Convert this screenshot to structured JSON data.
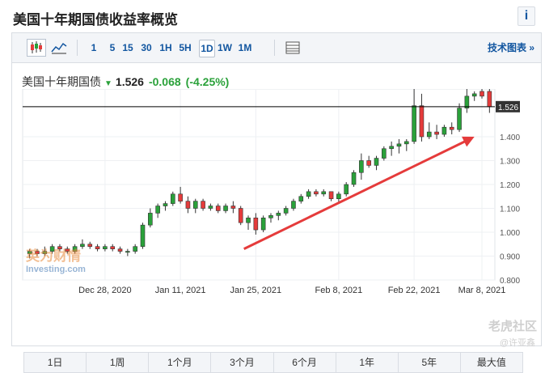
{
  "header": {
    "title": "美国十年期国债收益率概览",
    "info_icon": "i"
  },
  "toolbar": {
    "buttons": [
      "1",
      "5",
      "15",
      "30",
      "1H",
      "5H",
      "1D",
      "1W",
      "1M"
    ],
    "active": "1D",
    "right_link": "技术图表 »"
  },
  "quote": {
    "name": "美国十年期国债",
    "price": "1.526",
    "change": "-0.068",
    "change_pct": "(-4.25%)",
    "color_down": "#2aa13a"
  },
  "periods": [
    "1日",
    "1周",
    "1个月",
    "3个月",
    "6个月",
    "1年",
    "5年",
    "最大值"
  ],
  "watermark": {
    "logo": "英为财情",
    "logo_sub": "Investing.com",
    "corner": "老虎社区",
    "corner_sub": "@许亚鑫"
  },
  "chart_data": {
    "type": "candlestick",
    "last_price_label": "1.526",
    "ylim": [
      0.8,
      1.6
    ],
    "y_ticks": [
      "0.800",
      "0.900",
      "1.000",
      "1.100",
      "1.200",
      "1.300",
      "1.400"
    ],
    "x_ticks": [
      "Dec 28, 2020",
      "Jan 11, 2021",
      "Jan 25, 2021",
      "Feb 8, 2021",
      "Feb 22, 2021",
      "Mar 8, 2021"
    ],
    "x_tick_index": [
      10,
      20,
      30,
      41,
      51,
      60
    ],
    "colors": {
      "up": "#2aa13a",
      "down": "#e53b3b",
      "line": "#000000"
    },
    "candles": [
      [
        0.91,
        0.93,
        0.89,
        0.92
      ],
      [
        0.92,
        0.93,
        0.9,
        0.91
      ],
      [
        0.91,
        0.94,
        0.9,
        0.92
      ],
      [
        0.92,
        0.95,
        0.91,
        0.94
      ],
      [
        0.94,
        0.95,
        0.92,
        0.93
      ],
      [
        0.93,
        0.94,
        0.91,
        0.92
      ],
      [
        0.92,
        0.95,
        0.91,
        0.94
      ],
      [
        0.94,
        0.97,
        0.93,
        0.95
      ],
      [
        0.95,
        0.96,
        0.93,
        0.94
      ],
      [
        0.94,
        0.95,
        0.92,
        0.93
      ],
      [
        0.93,
        0.95,
        0.92,
        0.94
      ],
      [
        0.94,
        0.95,
        0.92,
        0.93
      ],
      [
        0.93,
        0.94,
        0.91,
        0.92
      ],
      [
        0.92,
        0.93,
        0.9,
        0.92
      ],
      [
        0.92,
        0.95,
        0.91,
        0.94
      ],
      [
        0.94,
        1.04,
        0.93,
        1.03
      ],
      [
        1.03,
        1.1,
        1.02,
        1.08
      ],
      [
        1.08,
        1.12,
        1.06,
        1.11
      ],
      [
        1.11,
        1.13,
        1.09,
        1.12
      ],
      [
        1.12,
        1.17,
        1.11,
        1.16
      ],
      [
        1.16,
        1.19,
        1.12,
        1.13
      ],
      [
        1.13,
        1.15,
        1.08,
        1.1
      ],
      [
        1.1,
        1.14,
        1.08,
        1.13
      ],
      [
        1.13,
        1.14,
        1.09,
        1.1
      ],
      [
        1.1,
        1.12,
        1.09,
        1.11
      ],
      [
        1.11,
        1.12,
        1.08,
        1.09
      ],
      [
        1.09,
        1.12,
        1.08,
        1.11
      ],
      [
        1.11,
        1.13,
        1.08,
        1.1
      ],
      [
        1.1,
        1.11,
        1.03,
        1.04
      ],
      [
        1.04,
        1.07,
        1.01,
        1.06
      ],
      [
        1.06,
        1.08,
        0.99,
        1.01
      ],
      [
        1.01,
        1.07,
        1.0,
        1.06
      ],
      [
        1.06,
        1.08,
        1.04,
        1.07
      ],
      [
        1.07,
        1.09,
        1.05,
        1.08
      ],
      [
        1.08,
        1.11,
        1.07,
        1.1
      ],
      [
        1.1,
        1.14,
        1.09,
        1.13
      ],
      [
        1.13,
        1.16,
        1.12,
        1.15
      ],
      [
        1.15,
        1.18,
        1.14,
        1.17
      ],
      [
        1.17,
        1.18,
        1.15,
        1.16
      ],
      [
        1.16,
        1.18,
        1.15,
        1.17
      ],
      [
        1.17,
        1.17,
        1.13,
        1.14
      ],
      [
        1.14,
        1.17,
        1.12,
        1.16
      ],
      [
        1.16,
        1.21,
        1.15,
        1.2
      ],
      [
        1.2,
        1.26,
        1.19,
        1.25
      ],
      [
        1.25,
        1.33,
        1.22,
        1.3
      ],
      [
        1.3,
        1.32,
        1.27,
        1.28
      ],
      [
        1.28,
        1.32,
        1.26,
        1.31
      ],
      [
        1.31,
        1.36,
        1.3,
        1.35
      ],
      [
        1.35,
        1.38,
        1.32,
        1.36
      ],
      [
        1.36,
        1.39,
        1.33,
        1.37
      ],
      [
        1.37,
        1.39,
        1.34,
        1.38
      ],
      [
        1.38,
        1.61,
        1.37,
        1.53
      ],
      [
        1.53,
        1.58,
        1.38,
        1.4
      ],
      [
        1.4,
        1.46,
        1.39,
        1.42
      ],
      [
        1.42,
        1.45,
        1.39,
        1.41
      ],
      [
        1.41,
        1.45,
        1.4,
        1.44
      ],
      [
        1.44,
        1.46,
        1.41,
        1.43
      ],
      [
        1.43,
        1.54,
        1.42,
        1.52
      ],
      [
        1.52,
        1.6,
        1.5,
        1.57
      ],
      [
        1.57,
        1.59,
        1.55,
        1.58
      ],
      [
        1.59,
        1.6,
        1.56,
        1.57
      ],
      [
        1.59,
        1.6,
        1.5,
        1.526
      ]
    ]
  }
}
